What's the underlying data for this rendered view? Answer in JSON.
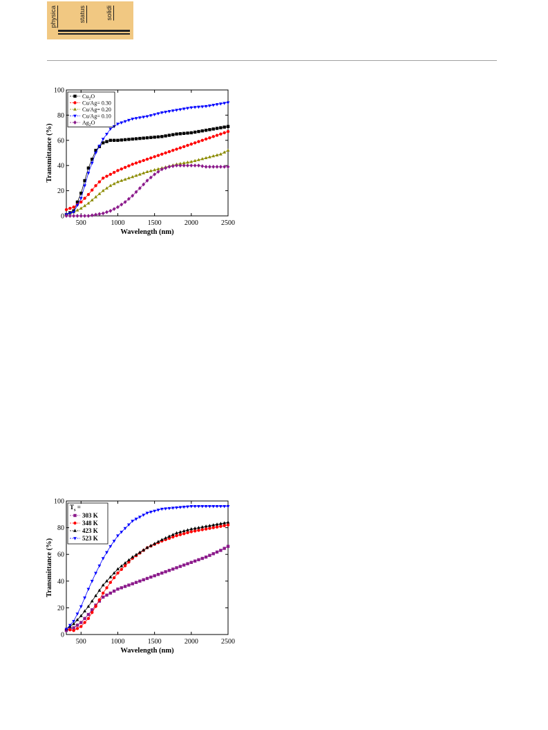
{
  "header": {
    "logo_words": [
      "physica",
      "status",
      "solidi"
    ]
  },
  "chart_data": [
    {
      "type": "scatter",
      "title": "",
      "xlabel": "Wavelength (nm)",
      "ylabel": "Transmittance (%)",
      "xlim": [
        300,
        2500
      ],
      "ylim": [
        0,
        100
      ],
      "xticks": [
        500,
        1000,
        1500,
        2000,
        2500
      ],
      "yticks": [
        0,
        20,
        40,
        60,
        80,
        100
      ],
      "xtick_labels": [
        "500",
        "1000",
        "1500",
        "2000",
        "2500"
      ],
      "ytick_labels": [
        "0",
        "20",
        "40",
        "60",
        "80",
        "100"
      ],
      "grid": false,
      "legend_position": "top-left",
      "series": [
        {
          "name": "Cu2O",
          "label_parts": [
            "Cu",
            "2",
            "O"
          ],
          "color": "#000000",
          "marker": "square",
          "x": [
            300,
            400,
            500,
            600,
            700,
            800,
            900,
            1000,
            1200,
            1400,
            1600,
            1800,
            2000,
            2200,
            2400,
            2500
          ],
          "y": [
            1,
            4,
            18,
            38,
            52,
            58,
            60,
            60,
            61,
            62,
            63,
            65,
            66,
            68,
            70,
            71
          ]
        },
        {
          "name": "Cu/Ag= 0.30",
          "label_parts": [
            "Cu/Ag= 0.30"
          ],
          "color": "#ff0000",
          "marker": "circle",
          "x": [
            300,
            400,
            500,
            600,
            700,
            800,
            900,
            1000,
            1200,
            1400,
            1600,
            1800,
            2000,
            2200,
            2400,
            2500
          ],
          "y": [
            5,
            7,
            11,
            17,
            24,
            30,
            33,
            36,
            41,
            45,
            49,
            53,
            57,
            61,
            65,
            67
          ]
        },
        {
          "name": "Cu/Ag= 0.20",
          "label_parts": [
            "Cu/Ag= 0.20"
          ],
          "color": "#8b8b00",
          "marker": "triangle-up",
          "x": [
            300,
            400,
            500,
            600,
            700,
            800,
            900,
            1000,
            1200,
            1400,
            1600,
            1800,
            2000,
            2200,
            2400,
            2500
          ],
          "y": [
            1,
            3,
            6,
            10,
            15,
            20,
            24,
            27,
            31,
            35,
            38,
            41,
            43,
            46,
            49,
            52
          ]
        },
        {
          "name": "Cu/Ag= 0.10",
          "label_parts": [
            "Cu/Ag= 0.10"
          ],
          "color": "#0000ff",
          "marker": "triangle-down",
          "x": [
            300,
            400,
            500,
            600,
            700,
            800,
            900,
            1000,
            1200,
            1400,
            1600,
            1800,
            2000,
            2200,
            2400,
            2500
          ],
          "y": [
            1,
            3,
            14,
            34,
            50,
            61,
            69,
            73,
            77,
            79,
            82,
            84,
            86,
            87,
            89,
            90
          ]
        },
        {
          "name": "Ag2O",
          "label_parts": [
            "Ag",
            "2",
            "O"
          ],
          "color": "#8b1a8b",
          "marker": "diamond",
          "x": [
            300,
            400,
            500,
            600,
            700,
            800,
            900,
            1000,
            1100,
            1200,
            1300,
            1400,
            1500,
            1600,
            1700,
            1800,
            1900,
            2000,
            2100,
            2200,
            2300,
            2400,
            2500
          ],
          "y": [
            0,
            0,
            0,
            0,
            1,
            2,
            4,
            7,
            11,
            16,
            22,
            28,
            33,
            37,
            39,
            40,
            40,
            40,
            40,
            39,
            39,
            39,
            39
          ]
        }
      ]
    },
    {
      "type": "scatter",
      "title": "",
      "xlabel": "Wavelength (nm)",
      "ylabel": "Transmittance (%)",
      "xlim": [
        300,
        2500
      ],
      "ylim": [
        0,
        100
      ],
      "xticks": [
        500,
        1000,
        1500,
        2000,
        2500
      ],
      "yticks": [
        0,
        20,
        40,
        60,
        80,
        100
      ],
      "xtick_labels": [
        "500",
        "1000",
        "1500",
        "2000",
        "2500"
      ],
      "ytick_labels": [
        "0",
        "20",
        "40",
        "60",
        "80",
        "100"
      ],
      "grid": false,
      "legend_position": "top-left",
      "legend_title": "T",
      "legend_title_sub": "s",
      "legend_title_suffix": " =",
      "series": [
        {
          "name": "303 K",
          "label_parts": [
            "303 K"
          ],
          "color": "#8b1a8b",
          "marker": "square",
          "x": [
            300,
            400,
            500,
            600,
            700,
            800,
            900,
            1000,
            1200,
            1400,
            1600,
            1800,
            2000,
            2200,
            2400,
            2500
          ],
          "y": [
            3,
            5,
            9,
            15,
            22,
            28,
            31,
            34,
            38,
            42,
            46,
            50,
            54,
            58,
            63,
            66
          ]
        },
        {
          "name": "348 K",
          "label_parts": [
            "348 K"
          ],
          "color": "#ff0000",
          "marker": "circle",
          "x": [
            300,
            400,
            500,
            600,
            700,
            800,
            900,
            1000,
            1200,
            1400,
            1600,
            1800,
            2000,
            2200,
            2400,
            2500
          ],
          "y": [
            4,
            3,
            6,
            12,
            21,
            31,
            39,
            46,
            57,
            65,
            70,
            74,
            77,
            79,
            81,
            82
          ]
        },
        {
          "name": "423 K",
          "label_parts": [
            "423 K"
          ],
          "color": "#000000",
          "marker": "triangle-up",
          "x": [
            300,
            400,
            500,
            600,
            700,
            800,
            900,
            1000,
            1200,
            1400,
            1600,
            1800,
            2000,
            2200,
            2400,
            2500
          ],
          "y": [
            4,
            8,
            14,
            21,
            29,
            37,
            43,
            49,
            58,
            65,
            71,
            76,
            79,
            81,
            83,
            84
          ]
        },
        {
          "name": "523 K",
          "label_parts": [
            "523 K"
          ],
          "color": "#0000ff",
          "marker": "triangle-down",
          "x": [
            300,
            400,
            500,
            600,
            700,
            800,
            900,
            1000,
            1200,
            1400,
            1600,
            1800,
            2000,
            2200,
            2400,
            2500
          ],
          "y": [
            4,
            10,
            21,
            34,
            46,
            57,
            66,
            74,
            85,
            91,
            94,
            95,
            96,
            96,
            96,
            96
          ]
        }
      ]
    }
  ]
}
